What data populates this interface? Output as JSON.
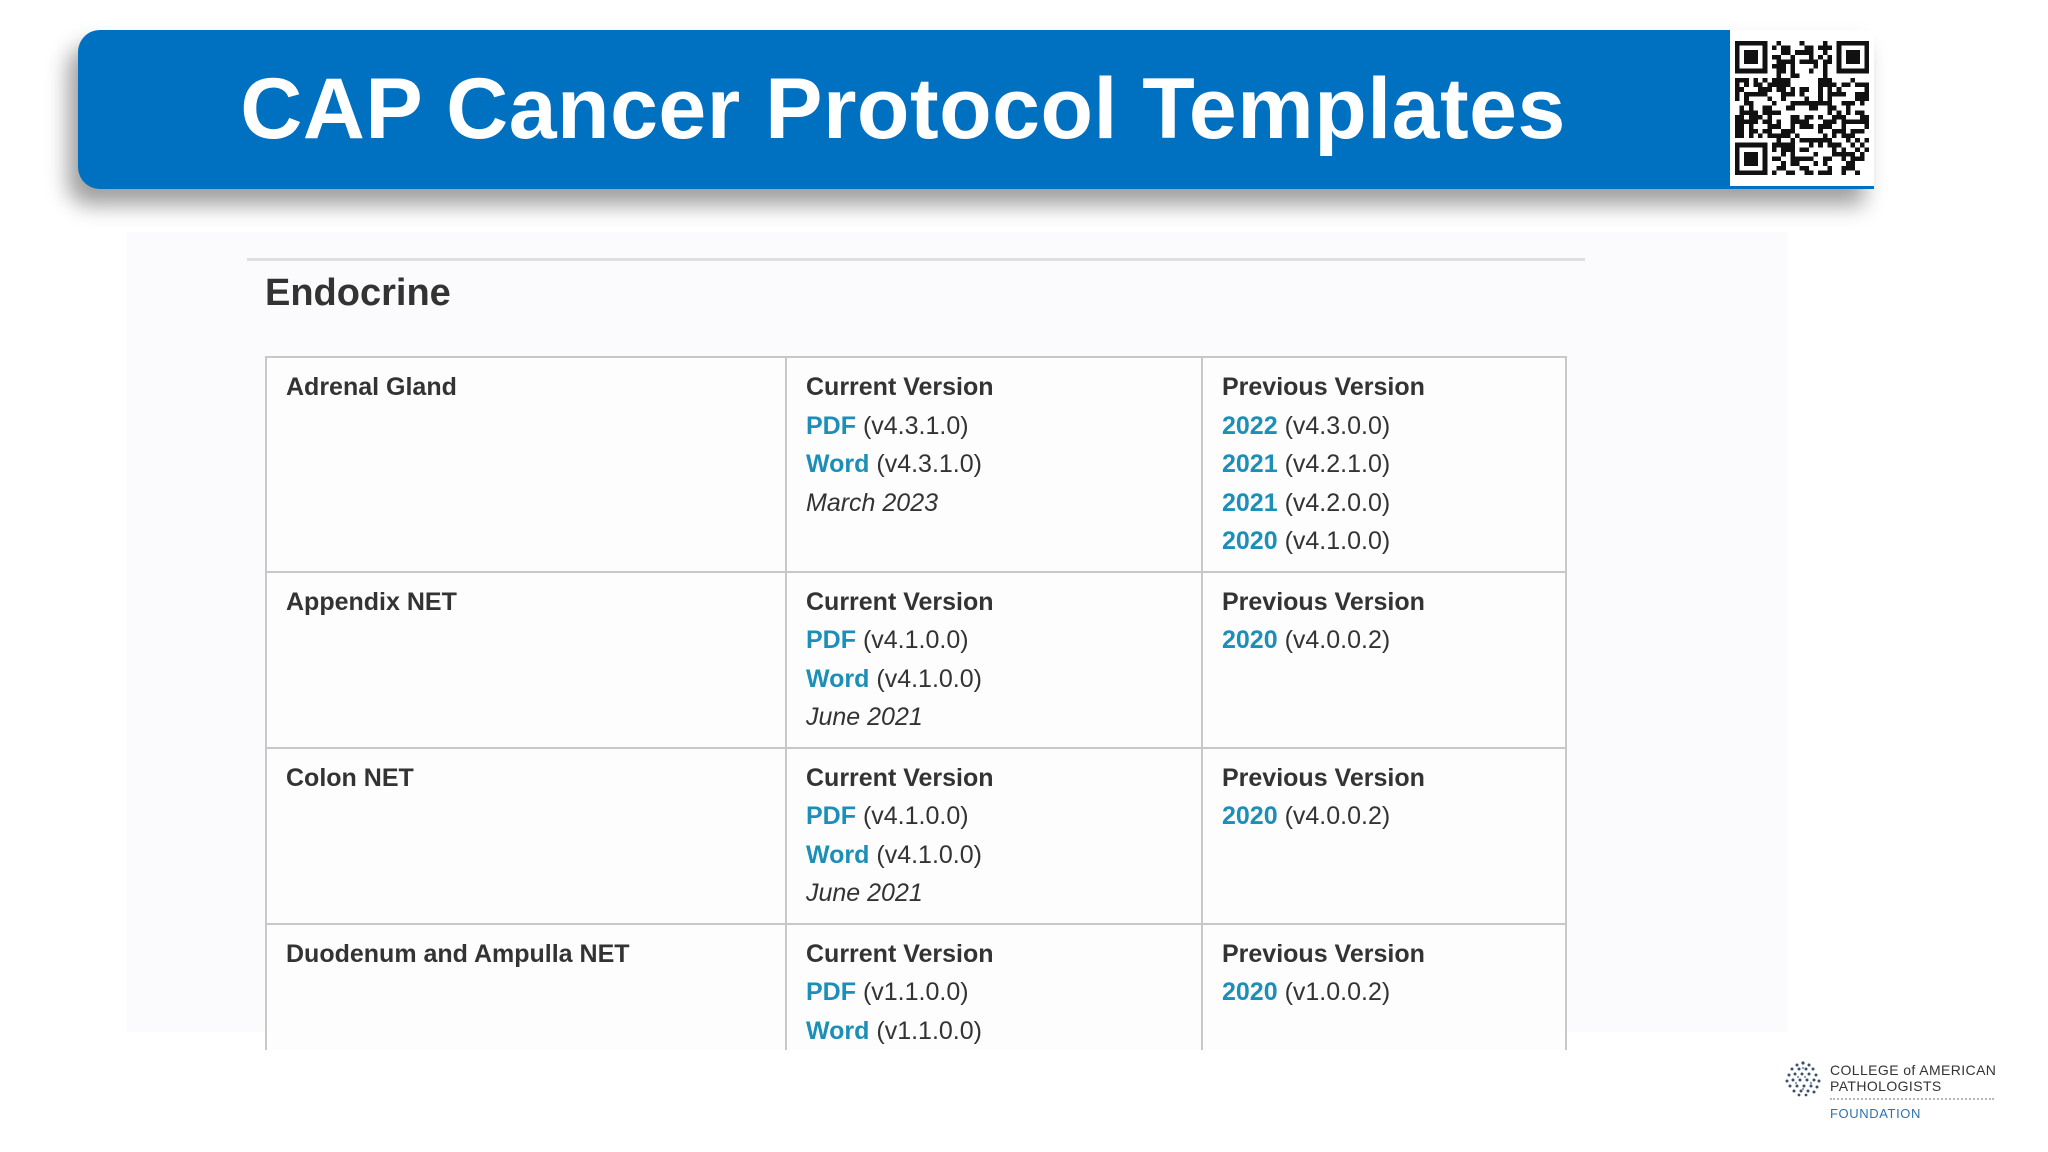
{
  "slide": {
    "title": "CAP Cancer Protocol Templates"
  },
  "section": {
    "title": "Endocrine"
  },
  "protocols": [
    {
      "name": "Adrenal Gland",
      "current_heading": "Current Version",
      "pdf_label": "PDF",
      "pdf_version": "(v4.3.1.0)",
      "word_label": "Word",
      "word_version": "(v4.3.1.0)",
      "date": "March 2023",
      "previous_heading": "Previous Version",
      "previous": [
        {
          "year": "2022",
          "version": "(v4.3.0.0)"
        },
        {
          "year": "2021",
          "version": "(v4.2.1.0)"
        },
        {
          "year": "2021",
          "version": "(v4.2.0.0)"
        },
        {
          "year": "2020",
          "version": "(v4.1.0.0)"
        }
      ]
    },
    {
      "name": "Appendix NET",
      "current_heading": "Current Version",
      "pdf_label": "PDF",
      "pdf_version": "(v4.1.0.0)",
      "word_label": "Word",
      "word_version": "(v4.1.0.0)",
      "date": "June 2021",
      "previous_heading": "Previous Version",
      "previous": [
        {
          "year": "2020",
          "version": "(v4.0.0.2)"
        }
      ]
    },
    {
      "name": "Colon NET",
      "current_heading": "Current Version",
      "pdf_label": "PDF",
      "pdf_version": "(v4.1.0.0)",
      "word_label": "Word",
      "word_version": "(v4.1.0.0)",
      "date": "June 2021",
      "previous_heading": "Previous Version",
      "previous": [
        {
          "year": "2020",
          "version": "(v4.0.0.2)"
        }
      ]
    },
    {
      "name": "Duodenum and Ampulla NET",
      "current_heading": "Current Version",
      "pdf_label": "PDF",
      "pdf_version": "(v1.1.0.0)",
      "word_label": "Word",
      "word_version": "(v1.1.0.0)",
      "previous_heading": "Previous Version",
      "previous": [
        {
          "year": "2020",
          "version": "(v1.0.0.2)"
        }
      ]
    }
  ],
  "logo": {
    "line1": "COLLEGE of AMERICAN",
    "line2": "PATHOLOGISTS",
    "line3": "FOUNDATION"
  },
  "colors": {
    "banner": "#0070c0",
    "link": "#1b8fb8",
    "text": "#333333"
  }
}
